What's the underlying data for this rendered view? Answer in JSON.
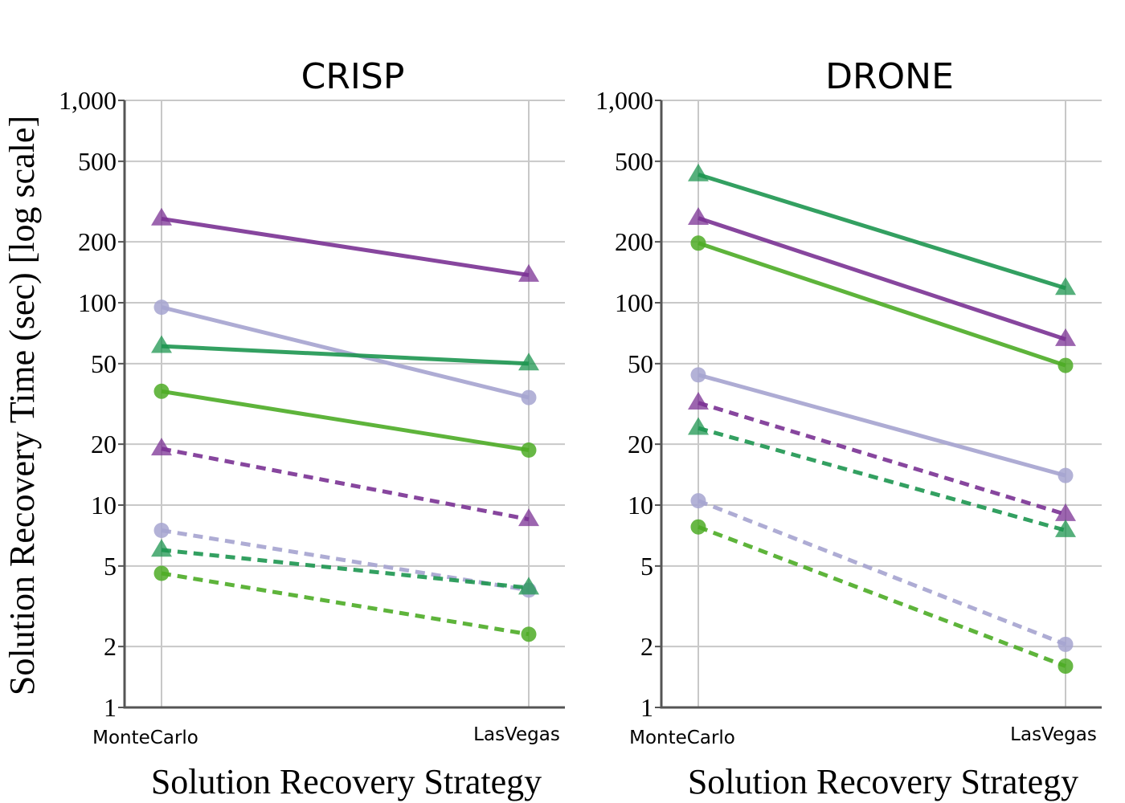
{
  "ylabel": "Solution Recovery Time (sec) [log scale]",
  "colors": {
    "purple": "#7b3294",
    "lavender": "#a6a4d0",
    "dark_green": "#1e9650",
    "light_green": "#4dac26"
  },
  "chart_data": [
    {
      "type": "line",
      "title": "CRISP",
      "xlabel": "Solution Recovery Strategy",
      "categories": [
        "MonteCarlo",
        "LasVegas"
      ],
      "yscale": "log",
      "ylim": [
        1,
        1000
      ],
      "yticks": [
        1,
        2,
        5,
        10,
        20,
        50,
        100,
        200,
        500,
        1000
      ],
      "ytick_labels": [
        "1",
        "2",
        "5",
        "10",
        "20",
        "50",
        "100",
        "200",
        "500",
        "1,000"
      ],
      "grid": true,
      "series": [
        {
          "name": "purple-triangle-solid",
          "color": "#7b3294",
          "marker": "triangle",
          "style": "solid",
          "values": [
            260,
            137
          ]
        },
        {
          "name": "lavender-circle-solid",
          "color": "#a6a4d0",
          "marker": "circle",
          "style": "solid",
          "values": [
            95,
            34
          ]
        },
        {
          "name": "darkgreen-triangle-solid",
          "color": "#1e9650",
          "marker": "triangle",
          "style": "solid",
          "values": [
            61,
            50
          ]
        },
        {
          "name": "lightgreen-circle-solid",
          "color": "#4dac26",
          "marker": "circle",
          "style": "solid",
          "values": [
            36.5,
            18.7
          ]
        },
        {
          "name": "purple-triangle-dashed",
          "color": "#7b3294",
          "marker": "triangle",
          "style": "dashed",
          "values": [
            19,
            8.5
          ]
        },
        {
          "name": "lavender-circle-dashed",
          "color": "#a6a4d0",
          "marker": "circle",
          "style": "dashed",
          "values": [
            7.5,
            3.8
          ]
        },
        {
          "name": "darkgreen-triangle-dashed",
          "color": "#1e9650",
          "marker": "triangle",
          "style": "dashed",
          "values": [
            6,
            3.9
          ]
        },
        {
          "name": "lightgreen-circle-dashed",
          "color": "#4dac26",
          "marker": "circle",
          "style": "dashed",
          "values": [
            4.6,
            2.3
          ]
        }
      ]
    },
    {
      "type": "line",
      "title": "DRONE",
      "xlabel": "Solution Recovery Strategy",
      "categories": [
        "MonteCarlo",
        "LasVegas"
      ],
      "yscale": "log",
      "ylim": [
        1,
        1000
      ],
      "yticks": [
        1,
        2,
        5,
        10,
        20,
        50,
        100,
        200,
        500,
        1000
      ],
      "ytick_labels": [
        "1",
        "2",
        "5",
        "10",
        "20",
        "50",
        "100",
        "200",
        "500",
        "1,000"
      ],
      "grid": true,
      "series": [
        {
          "name": "darkgreen-triangle-solid",
          "color": "#1e9650",
          "marker": "triangle",
          "style": "solid",
          "values": [
            430,
            118
          ]
        },
        {
          "name": "purple-triangle-solid",
          "color": "#7b3294",
          "marker": "triangle",
          "style": "solid",
          "values": [
            262,
            66
          ]
        },
        {
          "name": "lightgreen-circle-solid",
          "color": "#4dac26",
          "marker": "circle",
          "style": "solid",
          "values": [
            197,
            49
          ]
        },
        {
          "name": "lavender-circle-solid",
          "color": "#a6a4d0",
          "marker": "circle",
          "style": "solid",
          "values": [
            44,
            14
          ]
        },
        {
          "name": "purple-triangle-dashed",
          "color": "#7b3294",
          "marker": "triangle",
          "style": "dashed",
          "values": [
            32,
            9
          ]
        },
        {
          "name": "darkgreen-triangle-dashed",
          "color": "#1e9650",
          "marker": "triangle",
          "style": "dashed",
          "values": [
            24,
            7.5
          ]
        },
        {
          "name": "lavender-circle-dashed",
          "color": "#a6a4d0",
          "marker": "circle",
          "style": "dashed",
          "values": [
            10.5,
            2.05
          ]
        },
        {
          "name": "lightgreen-circle-dashed",
          "color": "#4dac26",
          "marker": "circle",
          "style": "dashed",
          "values": [
            7.8,
            1.6
          ]
        }
      ]
    }
  ]
}
